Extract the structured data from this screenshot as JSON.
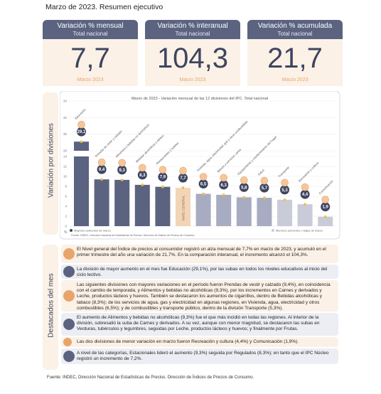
{
  "title": "Marzo de 2023. Resumen ejecutivo",
  "kpis": [
    {
      "head": "Variación % mensual",
      "sub": "Total nacional",
      "value": "7,7",
      "period": "Marzo 2023"
    },
    {
      "head": "Variación % interanual",
      "sub": "Total nacional",
      "value": "104,3",
      "period": "Marzo 2023"
    },
    {
      "head": "Variación % acumulada",
      "sub": "Total nacional",
      "value": "21,7",
      "period": "Marzo 2023"
    }
  ],
  "chart_data": {
    "type": "bar",
    "title": "Marzo de 2023 - Variación mensual de las 12 divisiones del IPC. Total nacional",
    "ylabel": "Variación por divisiones",
    "yunit": "%",
    "ylim": [
      0,
      34
    ],
    "yticks": [
      0,
      2,
      4,
      6,
      8,
      10,
      12,
      14,
      28,
      30,
      32,
      34
    ],
    "categories": [
      "Educación",
      "Prendas de vestir y calzado",
      "Alimentos y bebidas no alcohólicas",
      "Bebidas alcohólicas y tabaco",
      "Restaurantes y hoteles",
      "Nivel general",
      "Vivienda, agua, electricidad, gas y otros combustibles",
      "Bienes y servicios varios",
      "Equipamiento y mantenimiento del hogar",
      "Salud",
      "Transporte",
      "Recreación y cultura",
      "Comunicación"
    ],
    "values": [
      29.1,
      9.4,
      9.3,
      8.3,
      7.9,
      7.7,
      6.5,
      6.3,
      5.8,
      5.7,
      5.3,
      4.4,
      1.9
    ],
    "value_labels": [
      "29,1",
      "9,4",
      "9,3",
      "8,3",
      "7,9",
      "7,7",
      "6,5",
      "6,3",
      "5,8",
      "5,7",
      "5,3",
      "4,4",
      "1,9"
    ],
    "highlight": "Nivel general",
    "bar_label_inside": "NIVEL GENERAL",
    "legend_left": "Mayores aumentos de marzo",
    "legend_right": "Menores aumentos o bajas de marzo",
    "source": "Fuente: INDEC, Dirección Nacional de Estadísticas de Precios. Dirección de Índices de Precios de Consumo.",
    "colors": {
      "dark": "#5c6380",
      "mid": "#a8acc2",
      "light": "#c9cbd8",
      "highlight": "#f2d4b6",
      "dot": "#f0c040"
    }
  },
  "highlights_label": "Destacados del mes",
  "bullets": [
    "El Nivel general del Índice de precios al consumidor registró un alza mensual de 7,7% en marzo de 2023, y acumuló en el primer trimestre del año una variación de 21,7%. En la comparación interanual, el incremento alcanzó el 104,3%.",
    "La división de mayor aumento en el mes fue Educación (29,1%), por las subas en todos los niveles educativos al inicio del ciclo lectivo.",
    "Las siguientes divisiones con mayores variaciones en el período fueron Prendas de vestir y calzado (9,4%), en coincidencia con el cambio de temporada, y Alimentos y bebidas no alcohólicas (9,3%), por los incrementos en Carnes y derivados y Leche, productos lácteos y huevos. También se destacaron los aumentos de cigarrillos, dentro de Bebidas alcohólicas y tabaco (8,3%); de los servicios de agua, gas y electricidad en algunas regiones, en Vivienda, agua, electricidad y otros combustibles (6,5%); y de combustibles y transporte público, dentro de la división Transporte (5,3%).",
    "El aumento de Alimentos y bebidas no alcohólicas (9,3%) fue el que más incidió en todas las regiones. Al interior de la división, sobresalió la suba de Carnes y derivados. A su vez, aunque con menor magnitud, se destacaron las subas en Verduras, tubérculos y legumbres, seguidas por Leche, productos lácteos y huevos; y finalmente por Frutas.",
    "Las dos divisiones de menor variación en marzo fueron Recreación y cultura (4,4%) y Comunicación (1,9%).",
    "A nivel de las categorías, Estacionales lideró el aumento (9,3%) seguida por Regulados (8,3%); en tanto que el IPC Núcleo registró un incremento de 7,2%."
  ],
  "footer": "Fuente: INDEC, Dirección Nacional de Estadísticas de Precios. Dirección de Índices de Precios de Consumo."
}
